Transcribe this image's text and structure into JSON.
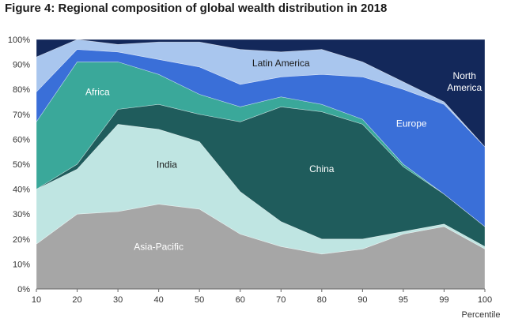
{
  "chart_data": {
    "type": "area",
    "title": "Figure 4: Regional composition of global wealth distribution in 2018",
    "xlabel": "Percentile",
    "ylabel": "",
    "x": [
      10,
      20,
      30,
      40,
      50,
      60,
      70,
      80,
      90,
      95,
      99,
      100
    ],
    "x_ticks": [
      "10",
      "20",
      "30",
      "40",
      "50",
      "60",
      "70",
      "80",
      "90",
      "95",
      "99",
      "100"
    ],
    "y_ticks": [
      "0%",
      "10%",
      "20%",
      "30%",
      "40%",
      "50%",
      "60%",
      "70%",
      "80%",
      "90%",
      "100%"
    ],
    "ylim": [
      0,
      100
    ],
    "stacked": true,
    "series": [
      {
        "name": "Asia-Pacific",
        "color": "#a6a6a6",
        "text_color": "#ffffff",
        "values": [
          18,
          30,
          31,
          34,
          32,
          22,
          17,
          14,
          16,
          22,
          25,
          16
        ]
      },
      {
        "name": "India",
        "color": "#bfe5e2",
        "text_color": "#1a1a1a",
        "values": [
          22,
          18,
          35,
          30,
          27,
          17,
          10,
          6,
          4,
          1,
          1,
          1
        ]
      },
      {
        "name": "China",
        "color": "#1f5c5c",
        "text_color": "#ffffff",
        "values": [
          0,
          2,
          6,
          10,
          11,
          28,
          46,
          51,
          46,
          26,
          12,
          8
        ]
      },
      {
        "name": "Africa",
        "color": "#3aa89a",
        "text_color": "#ffffff",
        "values": [
          27,
          41,
          19,
          12,
          8,
          6,
          4,
          3,
          2,
          1,
          0,
          0
        ]
      },
      {
        "name": "Europe",
        "color": "#3a6fd8",
        "text_color": "#ffffff",
        "values": [
          12,
          5,
          4,
          6,
          11,
          9,
          8,
          12,
          17,
          30,
          36,
          32
        ]
      },
      {
        "name": "Latin America",
        "color": "#a9c6ee",
        "text_color": "#1a1a1a",
        "values": [
          14,
          4,
          3,
          7,
          10,
          14,
          10,
          10,
          6,
          3,
          1,
          0
        ]
      },
      {
        "name": "North America",
        "color": "#13285a",
        "text_color": "#ffffff",
        "values": [
          7,
          0,
          2,
          1,
          1,
          4,
          5,
          4,
          9,
          17,
          25,
          43
        ]
      }
    ]
  }
}
